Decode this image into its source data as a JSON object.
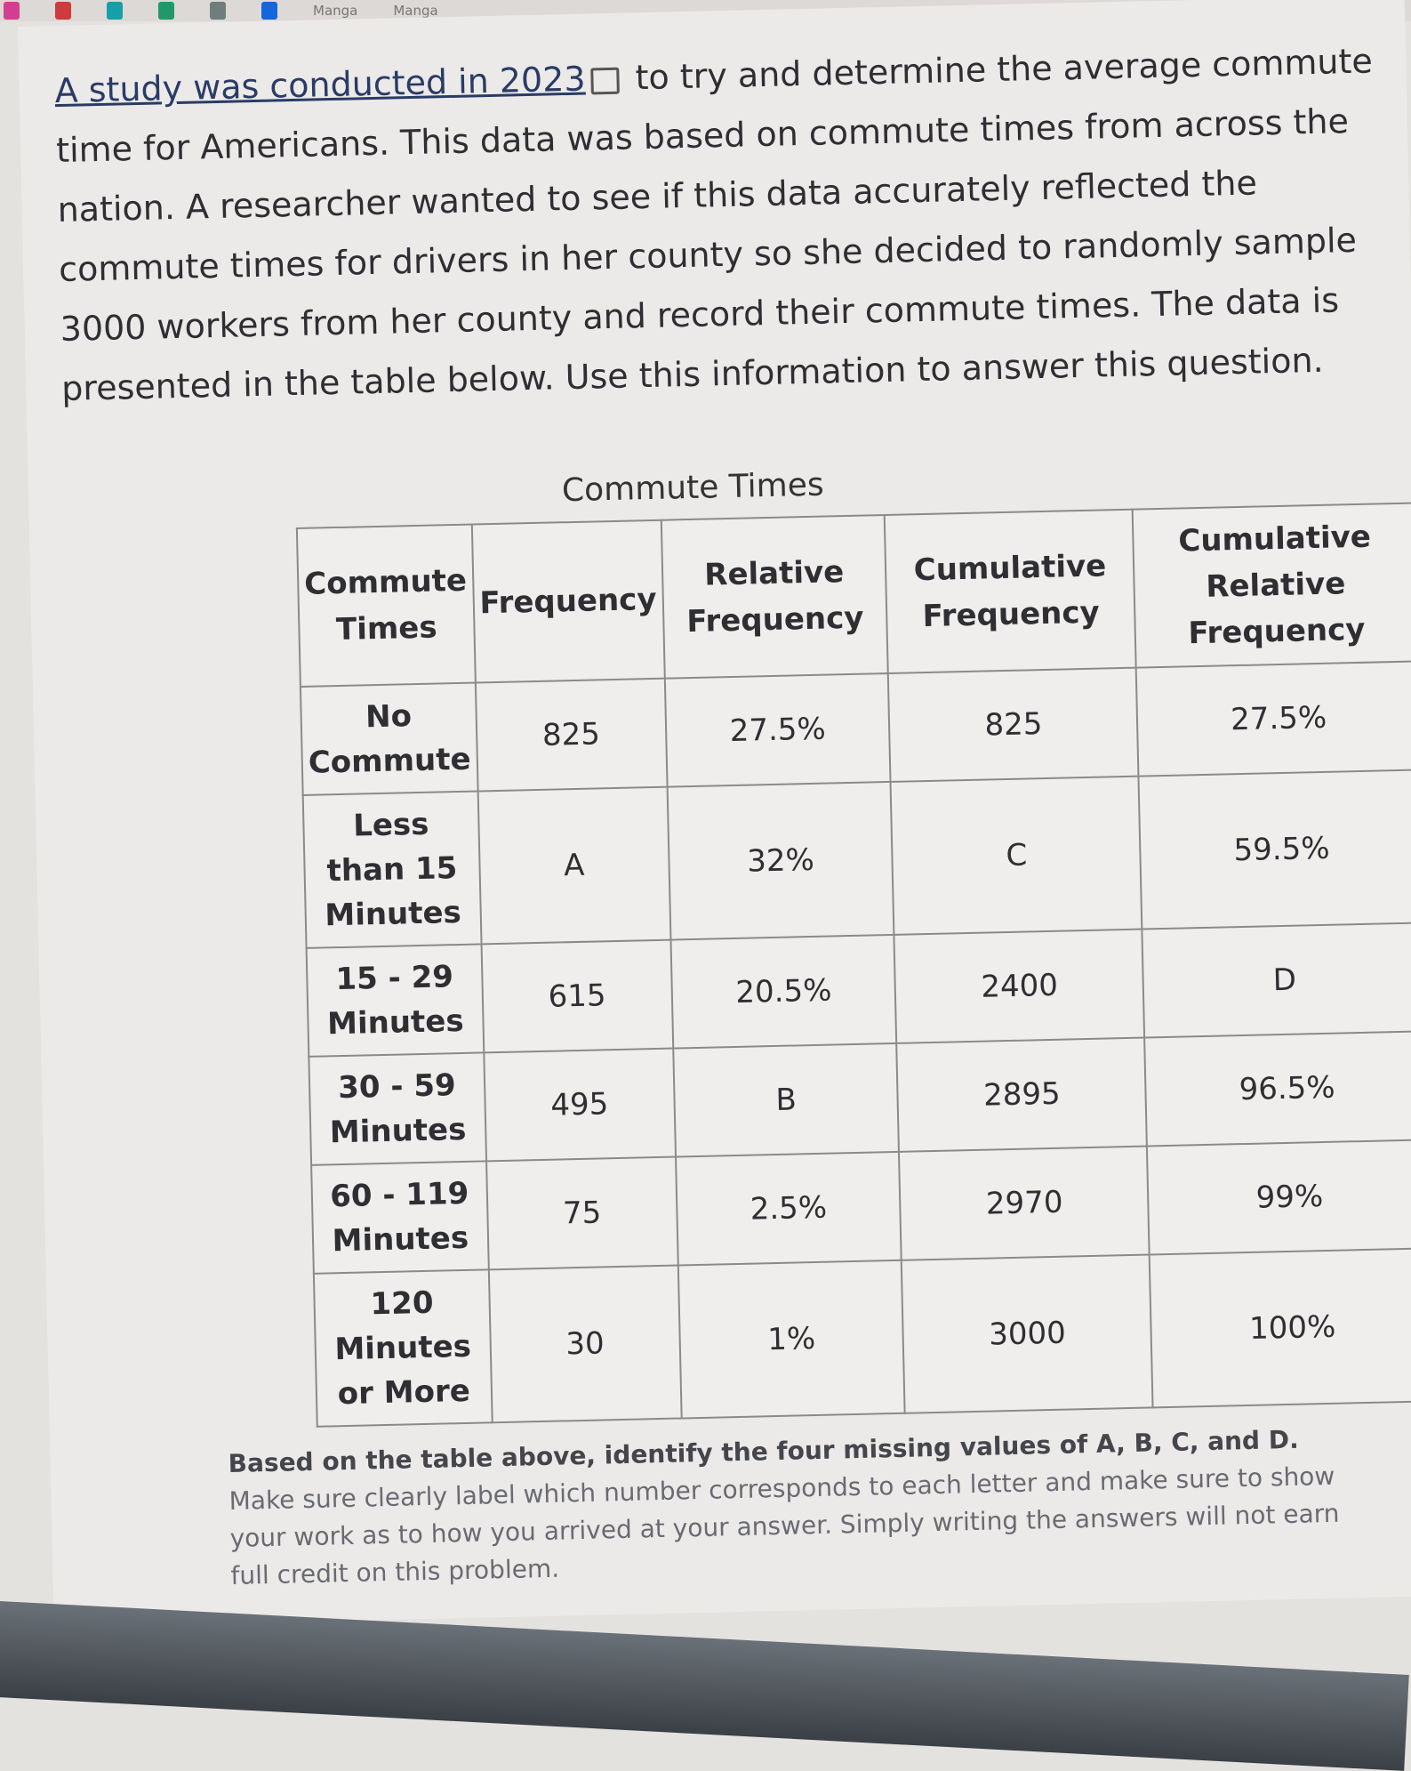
{
  "browser": {
    "bookmarks": [
      "Manga",
      "Manga"
    ],
    "swatch_colors": [
      "#d23f8f",
      "#cf3a3d",
      "#14a0a6",
      "#22986a",
      "#6f7e7c",
      "#1466dc"
    ]
  },
  "intro": {
    "link_text": "A study was conducted in 2023",
    "link_icon": "external-link-icon",
    "text": "to try and determine the average commute time for Americans. This data was based on commute times from across the nation. A researcher wanted to see if this data accurately reflected the commute times for drivers in her county so she decided to randomly sample 3000 workers from her county and record their commute times. The data is presented in the table below. Use this information to answer this question."
  },
  "table": {
    "caption": "Commute Times",
    "headers": [
      "Commute Times",
      "Frequency",
      "Relative Frequency",
      "Cumulative Frequency",
      "Cumulative Relative Frequency"
    ],
    "rows": [
      [
        "No Commute",
        "825",
        "27.5%",
        "825",
        "27.5%"
      ],
      [
        "Less than 15 Minutes",
        "A",
        "32%",
        "C",
        "59.5%"
      ],
      [
        "15 - 29 Minutes",
        "615",
        "20.5%",
        "2400",
        "D"
      ],
      [
        "30 - 59 Minutes",
        "495",
        "B",
        "2895",
        "96.5%"
      ],
      [
        "60 - 119 Minutes",
        "75",
        "2.5%",
        "2970",
        "99%"
      ],
      [
        "120 Minutes or More",
        "30",
        "1%",
        "3000",
        "100%"
      ]
    ]
  },
  "question": {
    "line1": "Based on the table above, identify the four missing values of A, B, C, and D.",
    "line2": "Make sure clearly label which number corresponds to each letter and make sure to show your work as to how you arrived at your answer. Simply writing the answers will not earn full credit on this problem."
  }
}
